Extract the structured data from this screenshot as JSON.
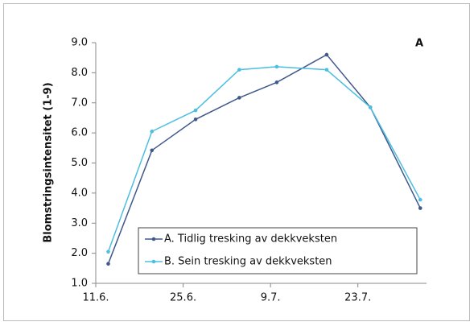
{
  "chart_data": {
    "type": "line",
    "annotation": "A",
    "y_label": "Blomstringsintensitet (1-9)",
    "x": [
      "13.6.",
      "20.6.",
      "27.6.",
      "4.7.",
      "10.7.",
      "18.7.",
      "25.7.",
      "2.8."
    ],
    "xlim": [
      "11.6.",
      "3.8."
    ],
    "xticks": [
      "11.6.",
      "25.6.",
      "9.7.",
      "23.7."
    ],
    "ylim": [
      1,
      9
    ],
    "yticks": [
      {
        "value": 1,
        "label": "1.0"
      },
      {
        "value": 2,
        "label": "2.0"
      },
      {
        "value": 3,
        "label": "3.0"
      },
      {
        "value": 4,
        "label": "4.0"
      },
      {
        "value": 5,
        "label": "5.0"
      },
      {
        "value": 6,
        "label": "6.0"
      },
      {
        "value": 7,
        "label": "7.0"
      },
      {
        "value": 8,
        "label": "8.0"
      },
      {
        "value": 9,
        "label": "9.0"
      }
    ],
    "series": [
      {
        "name": "A. Tidlig tresking av dekkveksten",
        "color": "#40598a",
        "values": [
          1.65,
          5.42,
          6.45,
          7.17,
          7.68,
          8.6,
          6.85,
          3.5
        ]
      },
      {
        "name": "B. Sein tresking av dekkveksten",
        "color": "#4cbfe0",
        "values": [
          2.05,
          6.05,
          6.75,
          8.1,
          8.2,
          8.1,
          6.85,
          3.78
        ]
      }
    ],
    "legend": "lower-center"
  }
}
